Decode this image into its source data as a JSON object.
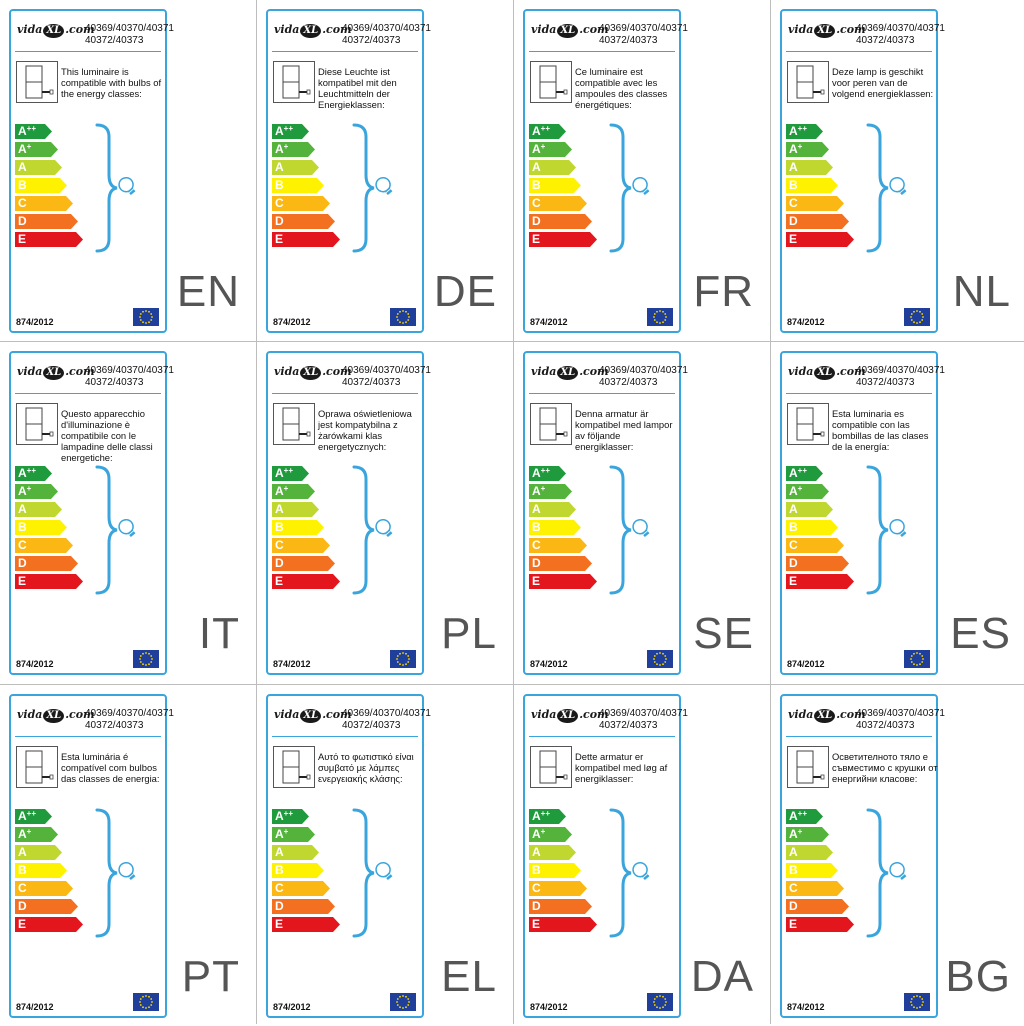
{
  "brand": {
    "name_left": "vida",
    "name_mid": "XL",
    "name_right": ".com"
  },
  "model_line1": "40369/40370/40371",
  "model_line2": "40372/40373",
  "regulation": "874/2012",
  "energy_classes": [
    {
      "letter": "A",
      "sup": "++",
      "color": "#1f9a3c",
      "width": 30
    },
    {
      "letter": "A",
      "sup": "+",
      "color": "#54b33b",
      "width": 36
    },
    {
      "letter": "A",
      "sup": "",
      "color": "#c0d730",
      "width": 40
    },
    {
      "letter": "B",
      "sup": "",
      "color": "#fff200",
      "width": 45
    },
    {
      "letter": "C",
      "sup": "",
      "color": "#fbb814",
      "width": 51
    },
    {
      "letter": "D",
      "sup": "",
      "color": "#f37021",
      "width": 56
    },
    {
      "letter": "E",
      "sup": "",
      "color": "#e3161e",
      "width": 61
    }
  ],
  "labels": [
    {
      "lang": "EN",
      "text": "This luminaire is compatible with bulbs of the energy classes:"
    },
    {
      "lang": "DE",
      "text": "Diese Leuchte ist kompatibel mit den Leuchtmitteln der Energieklassen:"
    },
    {
      "lang": "FR",
      "text": "Ce luminaire est compatible avec les ampoules des classes énergétiques:"
    },
    {
      "lang": "NL",
      "text": "Deze lamp is geschikt voor peren van de volgend energieklassen:"
    },
    {
      "lang": "IT",
      "text": "Questo apparecchio d'illuminazione è compatibile con le lampadine delle classi energetiche:"
    },
    {
      "lang": "PL",
      "text": "Oprawa oświetleniowa jest kompatybilna z żarówkami klas energetycznych:"
    },
    {
      "lang": "SE",
      "text": "Denna armatur är kompatibel med lampor av följande energiklasser:"
    },
    {
      "lang": "ES",
      "text": "Esta luminaria es compatible con las bombillas de las clases de la energía:"
    },
    {
      "lang": "PT",
      "text": "Esta luminária é compatível com bulbos das classes de energia:"
    },
    {
      "lang": "EL",
      "text": "Αυτό το φωτιστικό είναι συμβατό με λάμπες ενεργειακής κλάσης:"
    },
    {
      "lang": "DA",
      "text": "Dette armatur er kompatibel med løg af energiklasser:"
    },
    {
      "lang": "BG",
      "text": "Осветителното тяло е съвместимо с крушки от енергийни класове:"
    }
  ],
  "colors": {
    "accent": "#3aa5dc",
    "flag": "#1f3f9b",
    "star": "#ffdd00"
  },
  "icons": {
    "luminaire": "luminaire-icon",
    "bulb": "light-bulb-icon",
    "brace": "brace-icon",
    "flag": "eu-flag-icon"
  }
}
